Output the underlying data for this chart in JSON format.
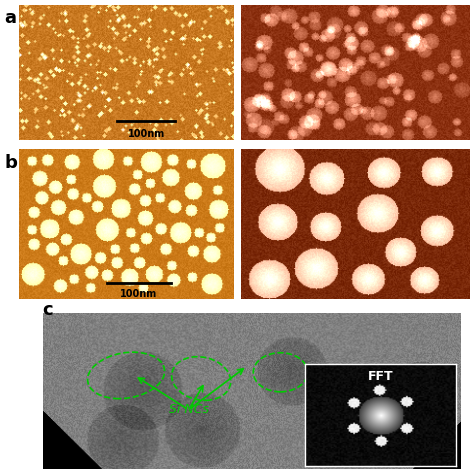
{
  "fig_width": 4.74,
  "fig_height": 4.74,
  "dpi": 100,
  "bg_color": "#ffffff",
  "label_a_text": "a",
  "label_b_text": "b",
  "label_c_text": "c",
  "scalebar_text": "100nm",
  "fft_text": "FFT",
  "sincs_text": "Si NCs",
  "panel_a_left_bg": "#c87820",
  "panel_a_right_bg": "#8b3010",
  "panel_b_left_bg": "#cc7a18",
  "panel_b_right_bg": "#7a2808",
  "panel_c_bg": "#808080",
  "green_color": "#00cc00"
}
